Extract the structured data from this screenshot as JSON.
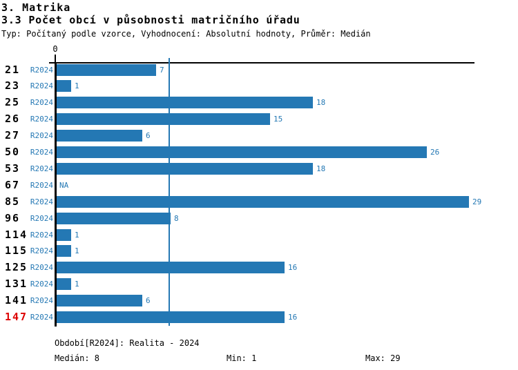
{
  "header": {
    "title": "3. Matrika",
    "subtitle": "3.3 Počet obcí v působnosti matričního úřadu",
    "meta": "Typ: Počítaný podle vzorce, Vyhodnocení: Absolutní hodnoty, Průměr: Medián"
  },
  "chart_data": {
    "type": "bar",
    "orientation": "horizontal",
    "title": "3.3 Počet obcí v působnosti matričního úřadu",
    "x_axis": {
      "zero_label": "0",
      "min": 0,
      "max": 29.5,
      "gridlines": false
    },
    "median_line_value": 8,
    "period_label": "R2024",
    "categories": [
      "21",
      "23",
      "25",
      "26",
      "27",
      "50",
      "53",
      "67",
      "85",
      "96",
      "114",
      "115",
      "125",
      "131",
      "141",
      "147"
    ],
    "rows": [
      {
        "category": "21",
        "value": 7,
        "label": "7",
        "highlighted": false
      },
      {
        "category": "23",
        "value": 1,
        "label": "1",
        "highlighted": false
      },
      {
        "category": "25",
        "value": 18,
        "label": "18",
        "highlighted": false
      },
      {
        "category": "26",
        "value": 15,
        "label": "15",
        "highlighted": false
      },
      {
        "category": "27",
        "value": 6,
        "label": "6",
        "highlighted": false
      },
      {
        "category": "50",
        "value": 26,
        "label": "26",
        "highlighted": false
      },
      {
        "category": "53",
        "value": 18,
        "label": "18",
        "highlighted": false
      },
      {
        "category": "67",
        "value": null,
        "label": "NA",
        "highlighted": false
      },
      {
        "category": "85",
        "value": 29,
        "label": "29",
        "highlighted": false
      },
      {
        "category": "96",
        "value": 8,
        "label": "8",
        "highlighted": false
      },
      {
        "category": "114",
        "value": 1,
        "label": "1",
        "highlighted": false
      },
      {
        "category": "115",
        "value": 1,
        "label": "1",
        "highlighted": false
      },
      {
        "category": "125",
        "value": 16,
        "label": "16",
        "highlighted": false
      },
      {
        "category": "131",
        "value": 1,
        "label": "1",
        "highlighted": false
      },
      {
        "category": "141",
        "value": 6,
        "label": "6",
        "highlighted": false
      },
      {
        "category": "147",
        "value": 16,
        "label": "16",
        "highlighted": true
      }
    ],
    "stats": {
      "median": 8,
      "min": 1,
      "max": 29
    },
    "colors": {
      "bar": "#2478B4",
      "value_text": "#2478B4",
      "period_text": "#2478B4",
      "median_line": "#2478B4",
      "category_text": "#000000",
      "highlight_category_text": "#DD0000",
      "axis": "#000000"
    }
  },
  "footer": {
    "period_info": "Období[R2024]: Realita - 2024",
    "median": "Medián: 8",
    "min": "Min: 1",
    "max": "Max: 29"
  }
}
